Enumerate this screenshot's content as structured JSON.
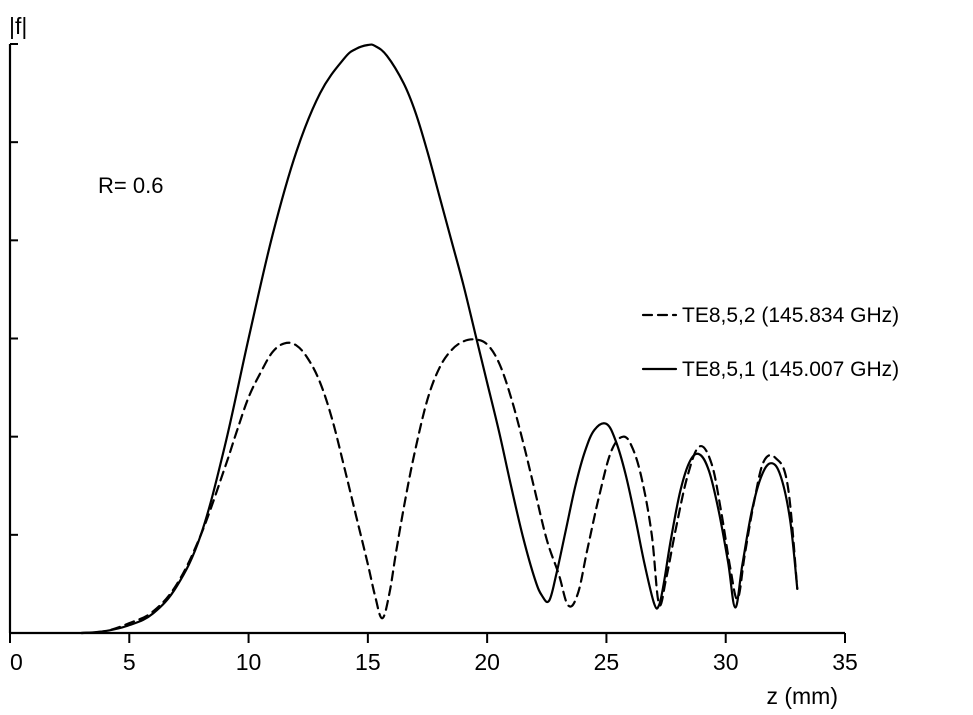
{
  "chart_data": {
    "type": "line",
    "title": "",
    "xlabel": "z (mm)",
    "ylabel": "|f|",
    "xlim": [
      0,
      35
    ],
    "ylim": [
      0,
      6
    ],
    "x_ticks": [
      0,
      5,
      10,
      15,
      20,
      25,
      30,
      35
    ],
    "y_tick_count": 6,
    "grid": false,
    "legend_position": "right",
    "annotation": "R= 0.6",
    "series": [
      {
        "name": "TE8,5,2 (145.834 GHz)",
        "style": "dashed",
        "x": [
          3,
          4,
          5,
          6,
          7,
          8,
          9,
          9.5,
          10,
          10.5,
          11,
          11.5,
          12,
          12.5,
          13,
          13.5,
          14,
          14.5,
          15,
          15.3,
          15.6,
          15.9,
          16.2,
          16.6,
          17,
          17.5,
          18,
          18.5,
          19,
          19.5,
          20,
          20.5,
          21,
          21.5,
          22,
          22.5,
          23,
          23.4,
          23.8,
          24.2,
          24.7,
          25.2,
          25.7,
          26.1,
          26.5,
          26.9,
          27.2,
          27.5,
          27.9,
          28.4,
          28.9,
          29.4,
          29.8,
          30.2,
          30.5,
          30.8,
          31.2,
          31.6,
          32.1,
          32.6,
          33
        ],
        "y": [
          0,
          0.02,
          0.1,
          0.22,
          0.5,
          1.0,
          1.68,
          2.05,
          2.4,
          2.65,
          2.86,
          2.95,
          2.93,
          2.79,
          2.55,
          2.18,
          1.7,
          1.2,
          0.7,
          0.38,
          0.15,
          0.4,
          0.85,
          1.4,
          1.88,
          2.38,
          2.7,
          2.88,
          2.97,
          2.99,
          2.94,
          2.75,
          2.4,
          1.95,
          1.45,
          0.95,
          0.6,
          0.28,
          0.4,
          0.85,
          1.4,
          1.85,
          2.0,
          1.88,
          1.55,
          1.0,
          0.3,
          0.55,
          1.05,
          1.6,
          1.9,
          1.73,
          1.25,
          0.65,
          0.35,
          0.8,
          1.35,
          1.75,
          1.78,
          1.5,
          0.45
        ]
      },
      {
        "name": "TE8,5,1 (145.007 GHz)",
        "style": "solid",
        "x": [
          3,
          4,
          5,
          6,
          7,
          8,
          9,
          10,
          11,
          12,
          13,
          14,
          14.5,
          15,
          15.3,
          15.8,
          16.5,
          17,
          17.5,
          18,
          18.5,
          19,
          19.5,
          20,
          20.5,
          21,
          21.5,
          22,
          22.3,
          22.6,
          22.9,
          23.3,
          23.7,
          24.1,
          24.5,
          25,
          25.4,
          25.8,
          26.2,
          26.6,
          27,
          27.2,
          27.4,
          27.7,
          28.1,
          28.5,
          28.9,
          29.3,
          29.7,
          30.1,
          30.4,
          30.7,
          31.1,
          31.5,
          31.9,
          32.3,
          32.7,
          33
        ],
        "y": [
          0,
          0.02,
          0.08,
          0.2,
          0.48,
          1.0,
          1.9,
          3.0,
          4.05,
          4.9,
          5.5,
          5.85,
          5.95,
          5.99,
          5.98,
          5.88,
          5.6,
          5.3,
          4.9,
          4.45,
          4.0,
          3.55,
          3.05,
          2.55,
          2.05,
          1.5,
          0.98,
          0.55,
          0.38,
          0.33,
          0.6,
          1.05,
          1.5,
          1.85,
          2.07,
          2.13,
          1.95,
          1.62,
          1.18,
          0.7,
          0.3,
          0.28,
          0.5,
          0.95,
          1.45,
          1.75,
          1.82,
          1.65,
          1.25,
          0.72,
          0.26,
          0.7,
          1.25,
          1.6,
          1.73,
          1.6,
          1.15,
          0.45
        ]
      }
    ]
  }
}
